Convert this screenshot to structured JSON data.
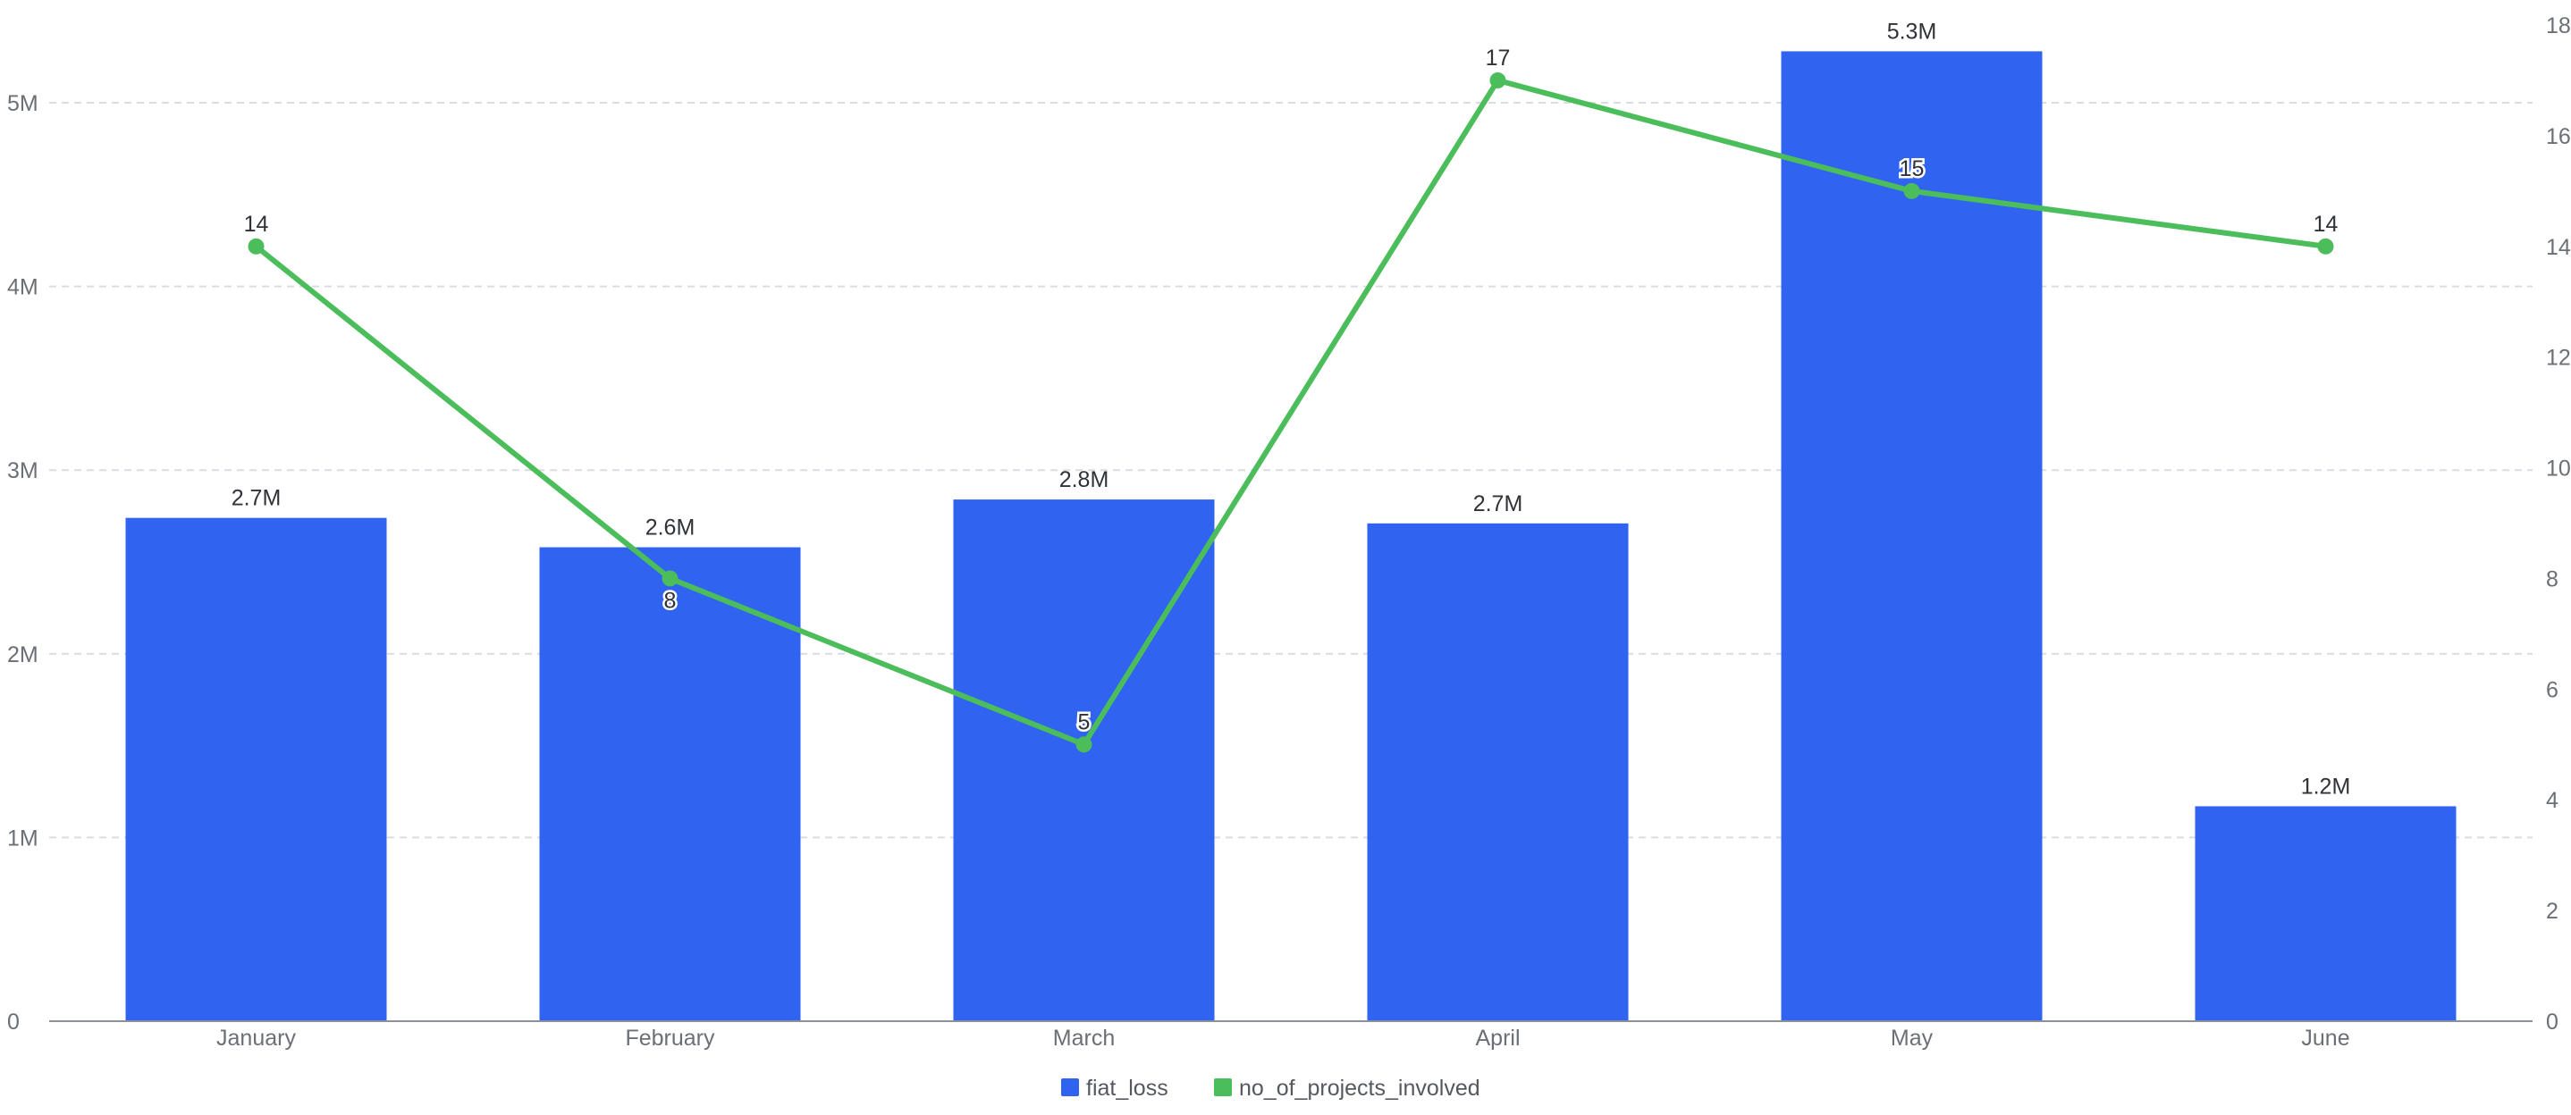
{
  "chart_data": {
    "type": "bar",
    "categories": [
      "January",
      "February",
      "March",
      "April",
      "May",
      "June"
    ],
    "series": [
      {
        "name": "fiat_loss",
        "type": "bar",
        "axis": "left",
        "color": "#2f63f0",
        "values": [
          2740000,
          2580000,
          2840000,
          2710000,
          5280000,
          1170000
        ],
        "labels": [
          "2.7M",
          "2.6M",
          "2.8M",
          "2.7M",
          "5.3M",
          "1.2M"
        ]
      },
      {
        "name": "no_of_projects_involved",
        "type": "line",
        "axis": "right",
        "color": "#4cbd5b",
        "values": [
          14,
          8,
          5,
          17,
          15,
          14
        ],
        "labels": [
          "14",
          "8",
          "5",
          "17",
          "15",
          "14"
        ]
      }
    ],
    "y_left": {
      "ylim": [
        0,
        5500000
      ],
      "ticks": [
        0,
        1000000,
        2000000,
        3000000,
        4000000,
        5000000
      ],
      "tick_labels": [
        "0",
        "1M",
        "2M",
        "3M",
        "4M",
        "5M"
      ]
    },
    "y_right": {
      "ylim": [
        0,
        18
      ],
      "ticks": [
        0,
        2,
        4,
        6,
        8,
        10,
        12,
        14,
        16,
        18
      ],
      "tick_labels": [
        "0",
        "2",
        "4",
        "6",
        "8",
        "10",
        "12",
        "14",
        "16",
        "18"
      ]
    },
    "grid": true,
    "legend": "bottom-center",
    "legend_items": [
      "fiat_loss",
      "no_of_projects_involved"
    ]
  }
}
